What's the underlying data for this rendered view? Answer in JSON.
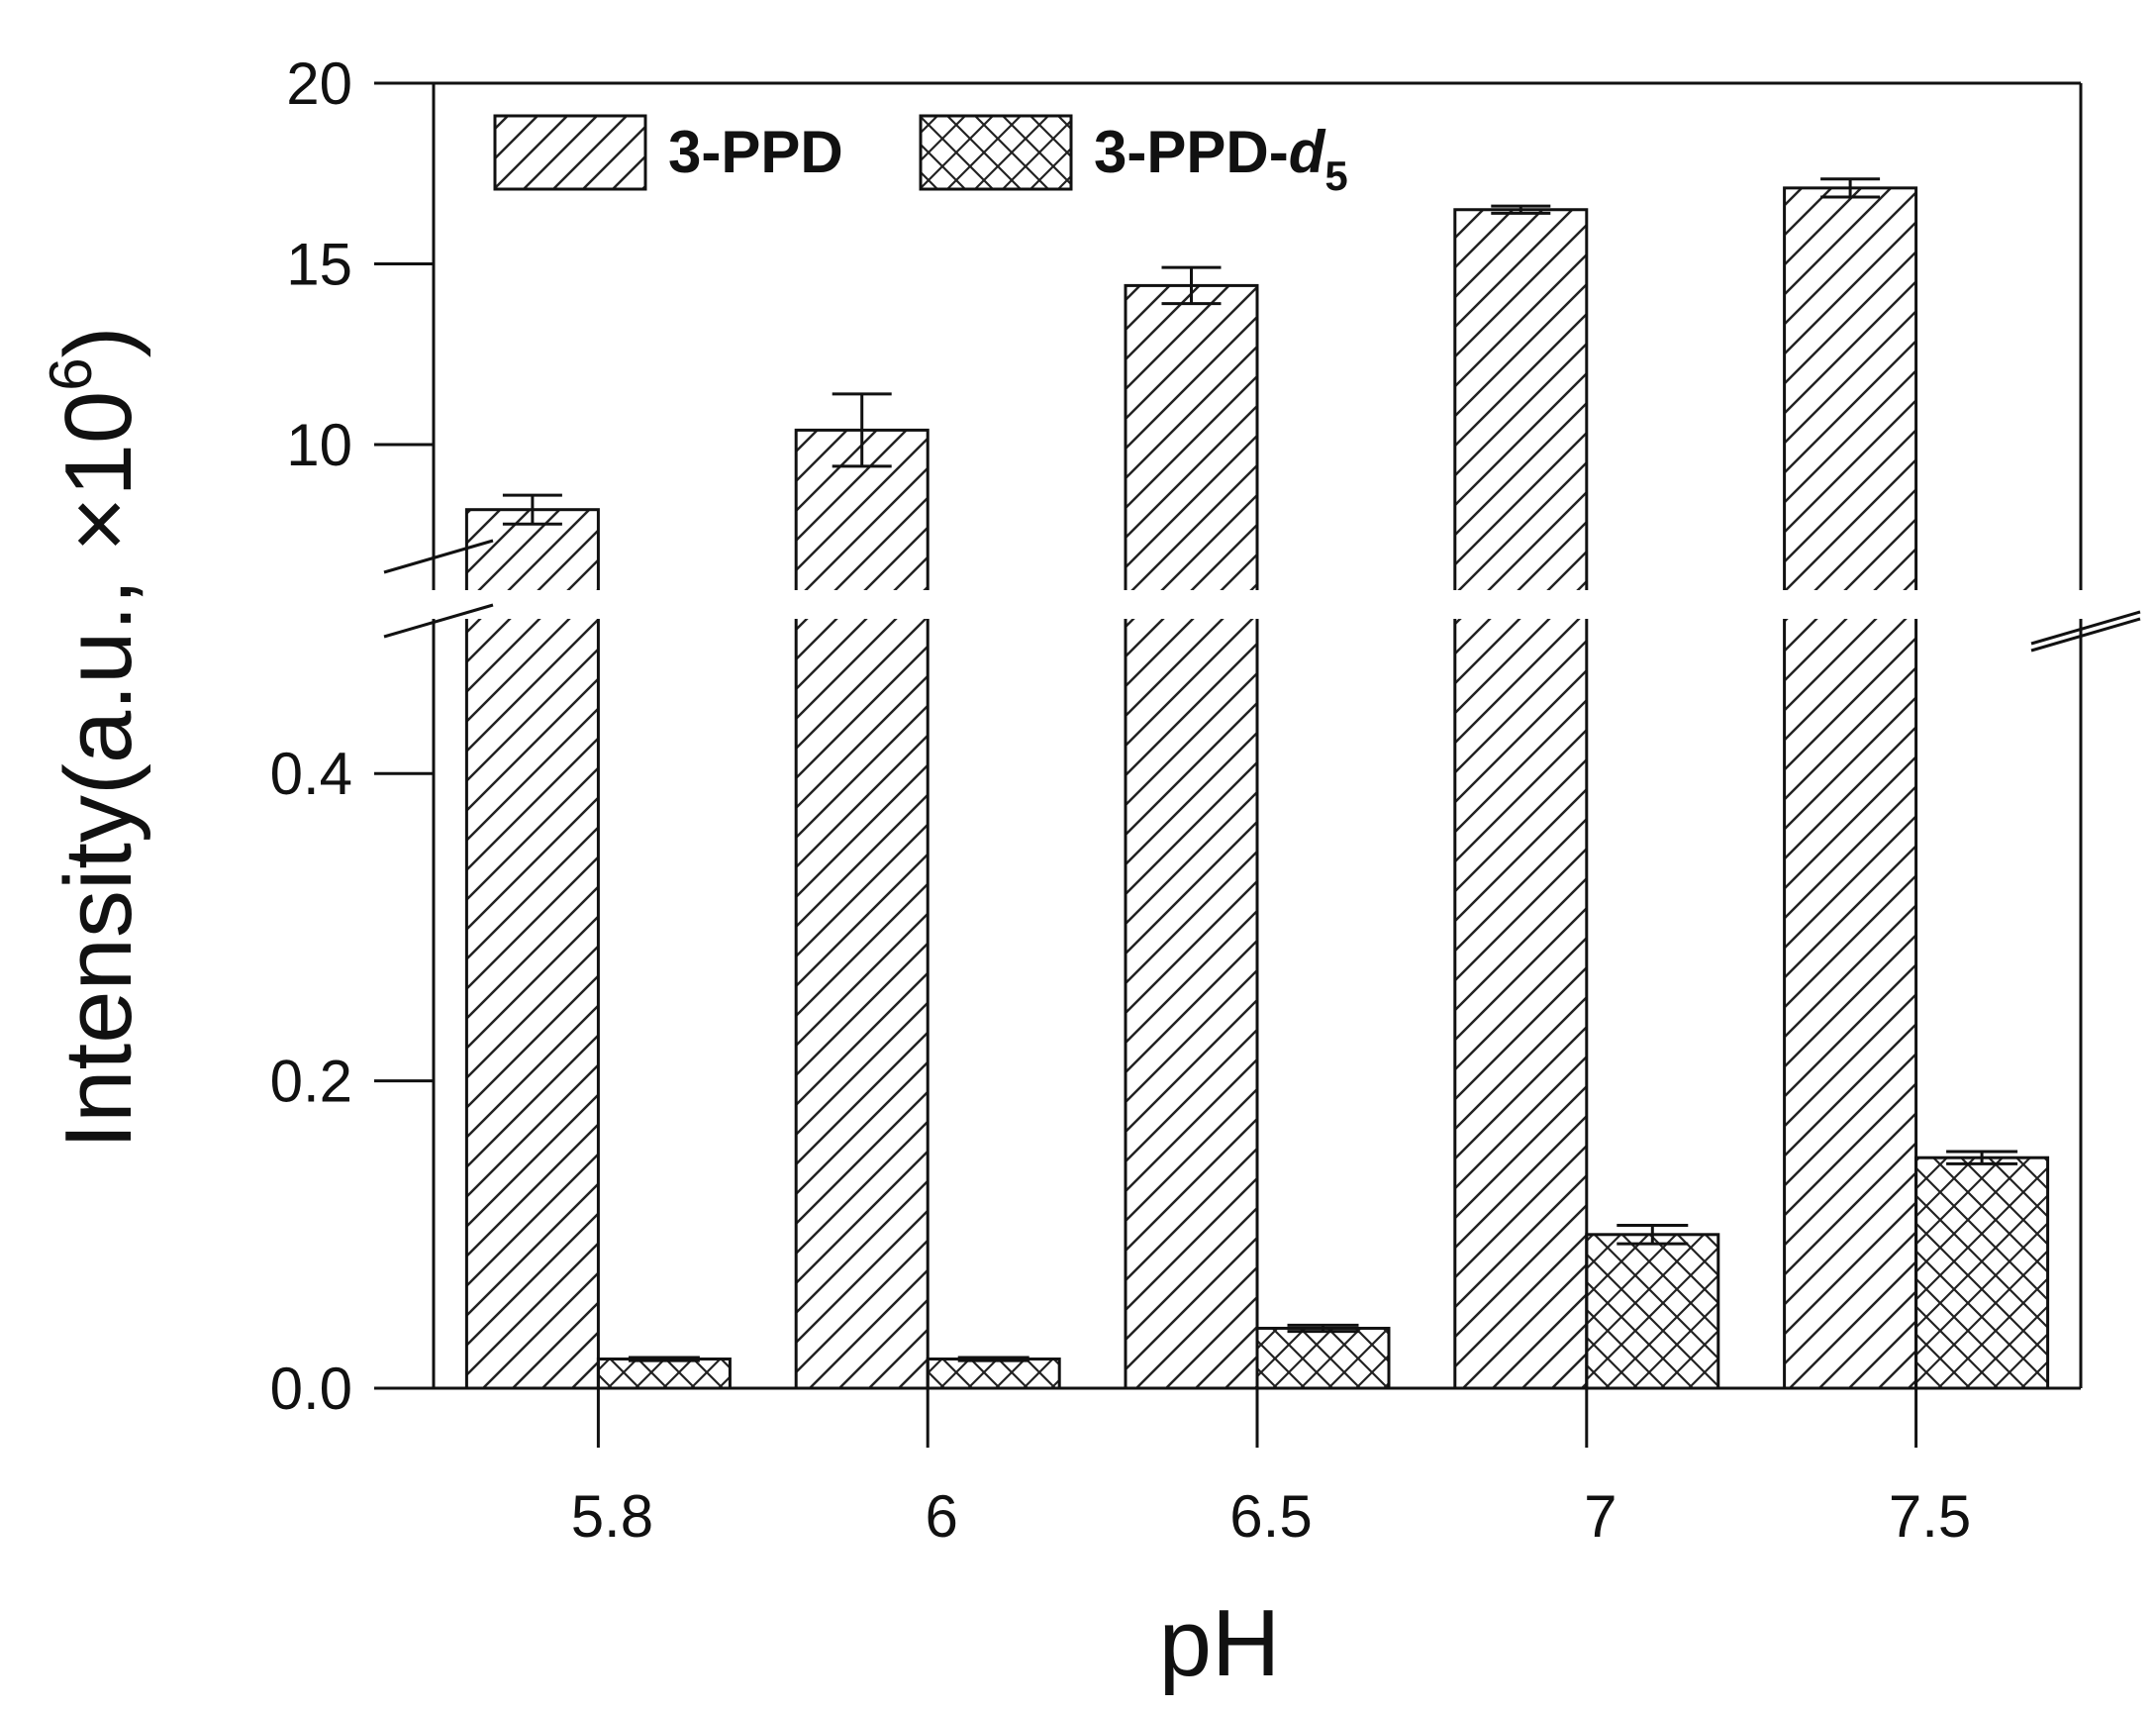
{
  "chart_data": {
    "type": "bar",
    "xlabel": "pH",
    "ylabel": "Intensity(a.u., ×10",
    "ylabel_sup": "6",
    "ylabel_close": ")",
    "categories": [
      "5.8",
      "6",
      "6.5",
      "7",
      "7.5"
    ],
    "axis_break": true,
    "lower_ylim": [
      0,
      0.5
    ],
    "lower_yticks": [
      "0.0",
      "0.2",
      "0.4"
    ],
    "lower_ytick_values": [
      0,
      0.2,
      0.4
    ],
    "upper_ylim": [
      6,
      20
    ],
    "upper_yticks": [
      "10",
      "15",
      "20"
    ],
    "upper_ytick_values": [
      10,
      15,
      20
    ],
    "series": [
      {
        "name": "3-PPD",
        "pattern": "diagonal-hatch",
        "values": [
          8.2,
          10.4,
          14.4,
          16.5,
          17.1
        ],
        "errors": [
          0.4,
          1.0,
          0.5,
          0.1,
          0.25
        ]
      },
      {
        "name": "3-PPD-d5",
        "name_main": "3-PPD-",
        "name_italic": "d",
        "name_sub": "5",
        "pattern": "cross-hatch",
        "values": [
          0.019,
          0.019,
          0.039,
          0.1,
          0.15
        ],
        "errors": [
          0.001,
          0.001,
          0.002,
          0.006,
          0.004
        ]
      }
    ],
    "legend_position": "top-left",
    "colors": {
      "fill": "#ffffff",
      "stroke": "#111111"
    }
  }
}
